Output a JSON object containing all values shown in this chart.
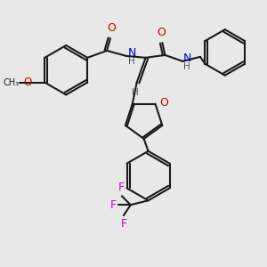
{
  "background_color": "#e8e8e8",
  "bond_color": "#1a1a1a",
  "atom_colors": {
    "O": "#cc0000",
    "N": "#0000cc",
    "F": "#cc00cc",
    "H": "#555555",
    "C": "#1a1a1a"
  },
  "figsize": [
    3.0,
    3.0
  ],
  "dpi": 100
}
